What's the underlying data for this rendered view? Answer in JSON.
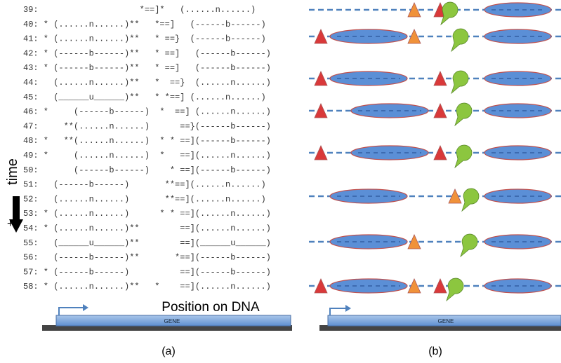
{
  "panel_a": {
    "rows": [
      "39:                    *==]*   (......n......)",
      "40: * (......n......)**   *==]   (------b------)",
      "41: * (......n......)**   * ==}  (------b------)",
      "42: * (------b------)**   * ==]   (------b------)",
      "43: * (------b------)**   * ==]   (------b------)",
      "44:   (......n......)**   *  ==}  (......n......)",
      "45:   (______u______)**   * *==] (......n......)",
      "46: *     (------b------)  *  ==] (......n......)",
      "47:     **(......n......)      ==}(------b------)",
      "48: *   **(......n......)  * * ==](------b------)",
      "49: *     (......n......)  *   ==](......n......)",
      "50:       (------b------)    * ==](------b------)",
      "51:   (------b------)       **==](......n......)",
      "52:   (......n......)       **==](......n......)",
      "53: * (......n......)      * * ==](......n......)",
      "54: * (......n......)**        ==](......n......)",
      "55:   (______u______)**        ==](______u______)",
      "56:   (------b------)**       *==](------b------)",
      "57: * (------b------)          ==](------b------)",
      "58: * (......n......)**   *    ==](......n......)"
    ],
    "time_label": "time",
    "time_sign": "+",
    "axis_label": "Position on DNA",
    "gene_label": "GENE",
    "caption": "(a)"
  },
  "panel_b": {
    "gene_label": "GENE",
    "caption": "(b)"
  }
}
